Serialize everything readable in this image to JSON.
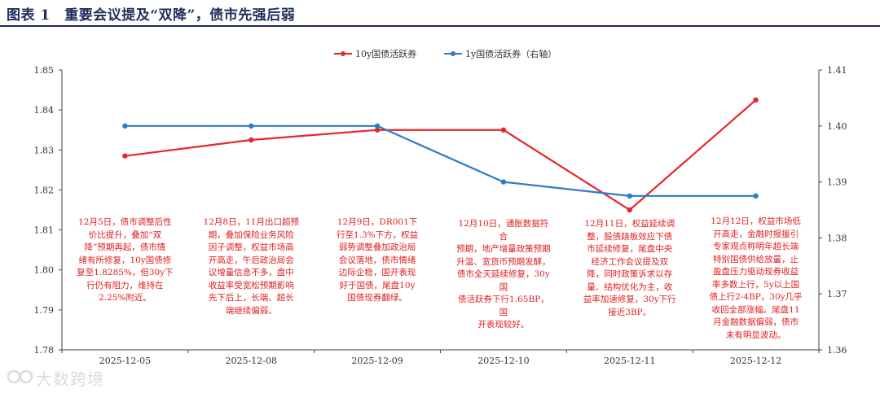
{
  "header": {
    "title": "图表 1　重要会议提及“双降”，债市先强后弱"
  },
  "colors": {
    "series_10y": "#e8252a",
    "series_1y": "#2e7cc6",
    "title": "#1f2d5a",
    "annotation": "#e02020"
  },
  "chart_data": {
    "type": "line",
    "categories": [
      "2025-12-05",
      "2025-12-08",
      "2025-12-09",
      "2025-12-10",
      "2025-12-11",
      "2025-12-12"
    ],
    "series": [
      {
        "name": "10y国债活跃券",
        "axis": "left",
        "color": "#e8252a",
        "values": [
          1.8285,
          1.8325,
          1.835,
          1.835,
          1.815,
          1.8425
        ]
      },
      {
        "name": "1y国债活跃券（右轴）",
        "axis": "right",
        "color": "#2e7cc6",
        "values": [
          1.4,
          1.4,
          1.4,
          1.39,
          1.3875,
          1.3875
        ]
      }
    ],
    "y_left": {
      "min": 1.78,
      "max": 1.85,
      "ticks": [
        "1.85",
        "1.84",
        "1.83",
        "1.82",
        "1.81",
        "1.80",
        "1.79",
        "1.78"
      ]
    },
    "y_right": {
      "min": 1.36,
      "max": 1.41,
      "ticks": [
        "1.41",
        "1.40",
        "1.39",
        "1.38",
        "1.37",
        "1.36"
      ]
    },
    "legend_position": "top-center",
    "grid": false,
    "annotations": [
      {
        "lines": [
          "12月5日，债市调整后性",
          "价比提升，叠加“双",
          "降”预期再起，债市情",
          "绪有所修复，10y国债修",
          "复至1.8285%，但30y下",
          "行仍有阻力，维持在",
          "2.25%附近。"
        ]
      },
      {
        "lines": [
          "12月8日，11月出口超预",
          "期，叠加保险业务风险",
          "因子调整，权益市场高",
          "开高走，午后政治局会",
          "议增量信息不多，盘中",
          "收益率受宽松预期影响",
          "先下后上，长端、超长",
          "端继续偏弱。"
        ]
      },
      {
        "lines": [
          "12月9日，DR001下",
          "行至1.3%下方，权益",
          "弱势调整叠加政治局",
          "会议落地，债市情绪",
          "边际企稳，国开表现",
          "好于国债，尾盘10y",
          "国债现券翻绿。"
        ]
      },
      {
        "lines": [
          "12月10日，通胀数据符合",
          "预期，地产增量政策预期",
          "升温、宽货币预期发酵，",
          "债市全天延续修复，30y国",
          "债活跃券下行1.65BP，国",
          "开表现较好。"
        ]
      },
      {
        "lines": [
          "12月11日，权益延续调",
          "整，股债跷板效应下债",
          "市延续修复，尾盘中央",
          "经济工作会议提及双",
          "降，同时政策诉求以存",
          "量、结构优化为主，收",
          "益率加速修复，30y下行",
          "接近3BP。"
        ]
      },
      {
        "lines": [
          "12月12日，权益市场低",
          "开高走，金融时报援引",
          "专家观点称明年超长端",
          "特别国债供给放量，止",
          "盈盘压力驱动现券收益",
          "率多数上行，5y以上国",
          "债上行2-4BP，30y几乎",
          "收回全部涨幅。尾盘11",
          "月金融数据偏弱，债市",
          "未有明显波动。"
        ]
      }
    ]
  },
  "watermark": {
    "text": "大数跨境"
  }
}
